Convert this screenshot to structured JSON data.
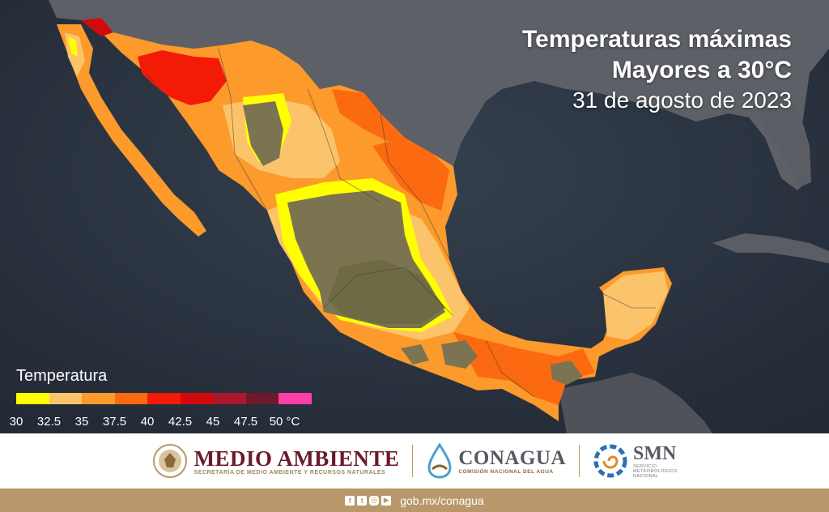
{
  "map": {
    "title_line1": "Temperaturas máximas",
    "title_line2": "Mayores a 30°C",
    "date": "31 de agosto de 2023"
  },
  "legend": {
    "title": "Temperatura",
    "colors": [
      "#ffff00",
      "#fcc46a",
      "#fc9a2c",
      "#fb6a10",
      "#f31a06",
      "#d20a0c",
      "#a8182e",
      "#6e1a2a",
      "#fc3fa4"
    ],
    "labels": [
      "30",
      "32.5",
      "35",
      "37.5",
      "40",
      "42.5",
      "45",
      "47.5",
      "50 °C"
    ]
  },
  "logos": {
    "medio_ambiente": "MEDIO AMBIENTE",
    "medio_ambiente_sub": "SECRETARÍA DE MEDIO AMBIENTE Y RECURSOS NATURALES",
    "conagua": "CONAGUA",
    "conagua_sub": "COMISIÓN NACIONAL DEL AGUA",
    "smn": "SMN",
    "smn_sub1": "SERVICIO",
    "smn_sub2": "METEOROLÓGICO",
    "smn_sub3": "NACIONAL"
  },
  "footer": {
    "url": "gob.mx/conagua",
    "icons": [
      "facebook-icon",
      "twitter-icon",
      "instagram-icon",
      "youtube-icon"
    ]
  }
}
